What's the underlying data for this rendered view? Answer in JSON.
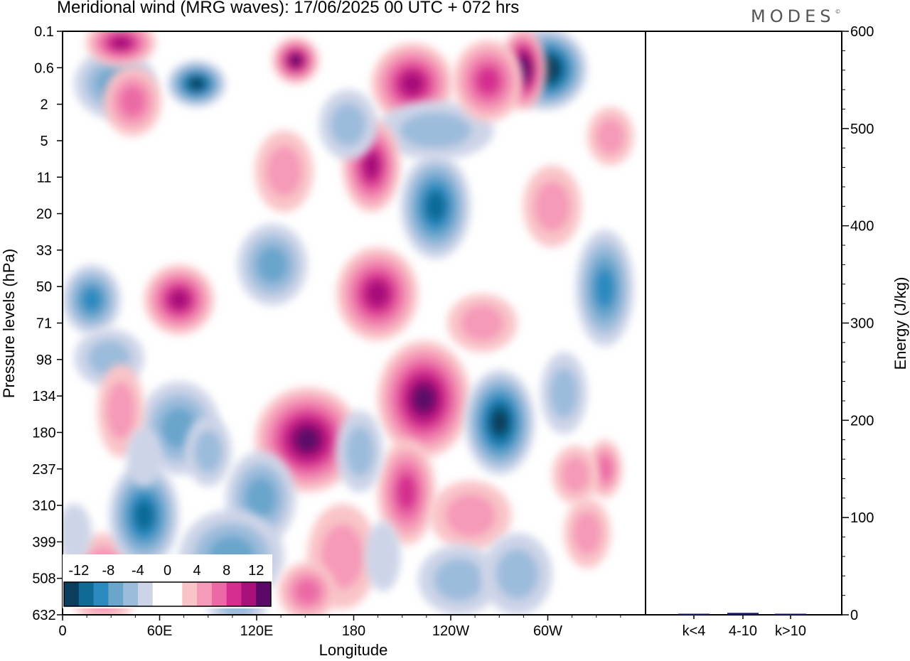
{
  "title": "Meridional wind (MRG waves):  17/06/2025  00 UTC  + 072 hrs",
  "logo": "MODES",
  "chart_data": [
    {
      "type": "heatmap",
      "title": "Meridional wind (MRG waves):  17/06/2025  00 UTC  + 072 hrs",
      "xlabel": "Longitude",
      "ylabel": "Pressure levels (hPa)",
      "x_ticks": [
        "0",
        "60E",
        "120E",
        "180",
        "120W",
        "60W"
      ],
      "y_ticks": [
        "0.1",
        "0.6",
        "2",
        "5",
        "11",
        "20",
        "33",
        "50",
        "71",
        "98",
        "134",
        "180",
        "237",
        "310",
        "399",
        "508",
        "632"
      ],
      "colorbar": {
        "labels": [
          "-12",
          "-8",
          "-4",
          "0",
          "4",
          "8",
          "12"
        ],
        "colors": [
          "#0b3d5c",
          "#106a96",
          "#2b8ac0",
          "#6aa5cc",
          "#9cbcdb",
          "#cdd4e8",
          "#ffffff",
          "#ffffff",
          "#f9c4c8",
          "#f59ab8",
          "#eb6aa5",
          "#d52e8f",
          "#a8117a",
          "#5c0868"
        ]
      },
      "features": [
        {
          "lon": 0.23,
          "p": 0.09,
          "rx": 0.05,
          "ry": 0.04,
          "v": -11
        },
        {
          "lon": 0.09,
          "p": 0.09,
          "rx": 0.07,
          "ry": 0.06,
          "v": -6
        },
        {
          "lon": 0.6,
          "p": 0.09,
          "rx": 0.07,
          "ry": 0.07,
          "v": 9
        },
        {
          "lon": 0.83,
          "p": 0.065,
          "rx": 0.07,
          "ry": 0.07,
          "v": -13
        },
        {
          "lon": 0.79,
          "p": 0.065,
          "rx": 0.04,
          "ry": 0.07,
          "v": 14
        },
        {
          "lon": 0.1,
          "p": 0.02,
          "rx": 0.06,
          "ry": 0.04,
          "v": 10
        },
        {
          "lon": 0.64,
          "p": 0.17,
          "rx": 0.1,
          "ry": 0.05,
          "v": -4
        },
        {
          "lon": 0.73,
          "p": 0.085,
          "rx": 0.06,
          "ry": 0.07,
          "v": 7
        },
        {
          "lon": 0.53,
          "p": 0.23,
          "rx": 0.05,
          "ry": 0.08,
          "v": 10
        },
        {
          "lon": 0.64,
          "p": 0.3,
          "rx": 0.06,
          "ry": 0.09,
          "v": -9
        },
        {
          "lon": 0.84,
          "p": 0.3,
          "rx": 0.05,
          "ry": 0.07,
          "v": 4
        },
        {
          "lon": 0.05,
          "p": 0.46,
          "rx": 0.05,
          "ry": 0.06,
          "v": -8
        },
        {
          "lon": 0.2,
          "p": 0.46,
          "rx": 0.06,
          "ry": 0.06,
          "v": 9
        },
        {
          "lon": 0.36,
          "p": 0.4,
          "rx": 0.06,
          "ry": 0.07,
          "v": -5
        },
        {
          "lon": 0.54,
          "p": 0.45,
          "rx": 0.07,
          "ry": 0.08,
          "v": 9
        },
        {
          "lon": 0.93,
          "p": 0.44,
          "rx": 0.05,
          "ry": 0.1,
          "v": -8
        },
        {
          "lon": 0.2,
          "p": 0.68,
          "rx": 0.07,
          "ry": 0.08,
          "v": -6
        },
        {
          "lon": 0.42,
          "p": 0.7,
          "rx": 0.09,
          "ry": 0.09,
          "v": 12
        },
        {
          "lon": 0.62,
          "p": 0.63,
          "rx": 0.08,
          "ry": 0.1,
          "v": 11
        },
        {
          "lon": 0.75,
          "p": 0.67,
          "rx": 0.06,
          "ry": 0.09,
          "v": -11
        },
        {
          "lon": 0.59,
          "p": 0.79,
          "rx": 0.05,
          "ry": 0.09,
          "v": 8
        },
        {
          "lon": 0.34,
          "p": 0.8,
          "rx": 0.06,
          "ry": 0.08,
          "v": -5
        },
        {
          "lon": 0.7,
          "p": 0.83,
          "rx": 0.07,
          "ry": 0.06,
          "v": 3
        },
        {
          "lon": 0.93,
          "p": 0.75,
          "rx": 0.03,
          "ry": 0.05,
          "v": 5
        },
        {
          "lon": 0.07,
          "p": 0.94,
          "rx": 0.06,
          "ry": 0.08,
          "v": 6
        },
        {
          "lon": 0.14,
          "p": 0.83,
          "rx": 0.06,
          "ry": 0.09,
          "v": -9
        },
        {
          "lon": 0.29,
          "p": 0.9,
          "rx": 0.09,
          "ry": 0.08,
          "v": -6
        },
        {
          "lon": 0.48,
          "p": 0.9,
          "rx": 0.06,
          "ry": 0.09,
          "v": 4
        },
        {
          "lon": 0.68,
          "p": 0.94,
          "rx": 0.07,
          "ry": 0.06,
          "v": -4
        },
        {
          "lon": 0.3,
          "p": 0.98,
          "rx": 0.05,
          "ry": 0.05,
          "v": -4
        },
        {
          "lon": 0.42,
          "p": 0.96,
          "rx": 0.05,
          "ry": 0.05,
          "v": 5
        },
        {
          "lon": 0.78,
          "p": 0.93,
          "rx": 0.06,
          "ry": 0.07,
          "v": -3
        },
        {
          "lon": 0.08,
          "p": 0.56,
          "rx": 0.06,
          "ry": 0.05,
          "v": -3
        },
        {
          "lon": 0.72,
          "p": 0.5,
          "rx": 0.06,
          "ry": 0.05,
          "v": 4
        },
        {
          "lon": 0.12,
          "p": 0.12,
          "rx": 0.05,
          "ry": 0.06,
          "v": 5
        },
        {
          "lon": 0.4,
          "p": 0.05,
          "rx": 0.04,
          "ry": 0.04,
          "v": 11
        },
        {
          "lon": 0.49,
          "p": 0.16,
          "rx": 0.05,
          "ry": 0.06,
          "v": -4
        },
        {
          "lon": 0.38,
          "p": 0.24,
          "rx": 0.05,
          "ry": 0.07,
          "v": 3
        },
        {
          "lon": 0.1,
          "p": 0.65,
          "rx": 0.04,
          "ry": 0.08,
          "v": 3
        },
        {
          "lon": 0.14,
          "p": 0.73,
          "rx": 0.03,
          "ry": 0.05,
          "v": -2
        },
        {
          "lon": 0.25,
          "p": 0.72,
          "rx": 0.04,
          "ry": 0.06,
          "v": -3
        },
        {
          "lon": 0.51,
          "p": 0.72,
          "rx": 0.04,
          "ry": 0.07,
          "v": -3
        },
        {
          "lon": 0.86,
          "p": 0.62,
          "rx": 0.04,
          "ry": 0.07,
          "v": -4
        },
        {
          "lon": 0.9,
          "p": 0.86,
          "rx": 0.04,
          "ry": 0.06,
          "v": 3
        },
        {
          "lon": 0.02,
          "p": 0.86,
          "rx": 0.03,
          "ry": 0.05,
          "v": -2
        },
        {
          "lon": 0.55,
          "p": 0.9,
          "rx": 0.03,
          "ry": 0.06,
          "v": -2
        },
        {
          "lon": 0.88,
          "p": 0.76,
          "rx": 0.04,
          "ry": 0.05,
          "v": 4
        },
        {
          "lon": 0.94,
          "p": 0.18,
          "rx": 0.04,
          "ry": 0.05,
          "v": 3
        }
      ]
    },
    {
      "type": "bar",
      "ylabel": "Energy (J/kg)",
      "categories": [
        "k<4",
        "4-10",
        "k>10"
      ],
      "values": [
        0,
        2,
        0
      ],
      "ylim": [
        0,
        600
      ],
      "y_ticks": [
        "0",
        "100",
        "200",
        "300",
        "400",
        "500",
        "600"
      ],
      "bar_color": "#1a1a66"
    }
  ]
}
